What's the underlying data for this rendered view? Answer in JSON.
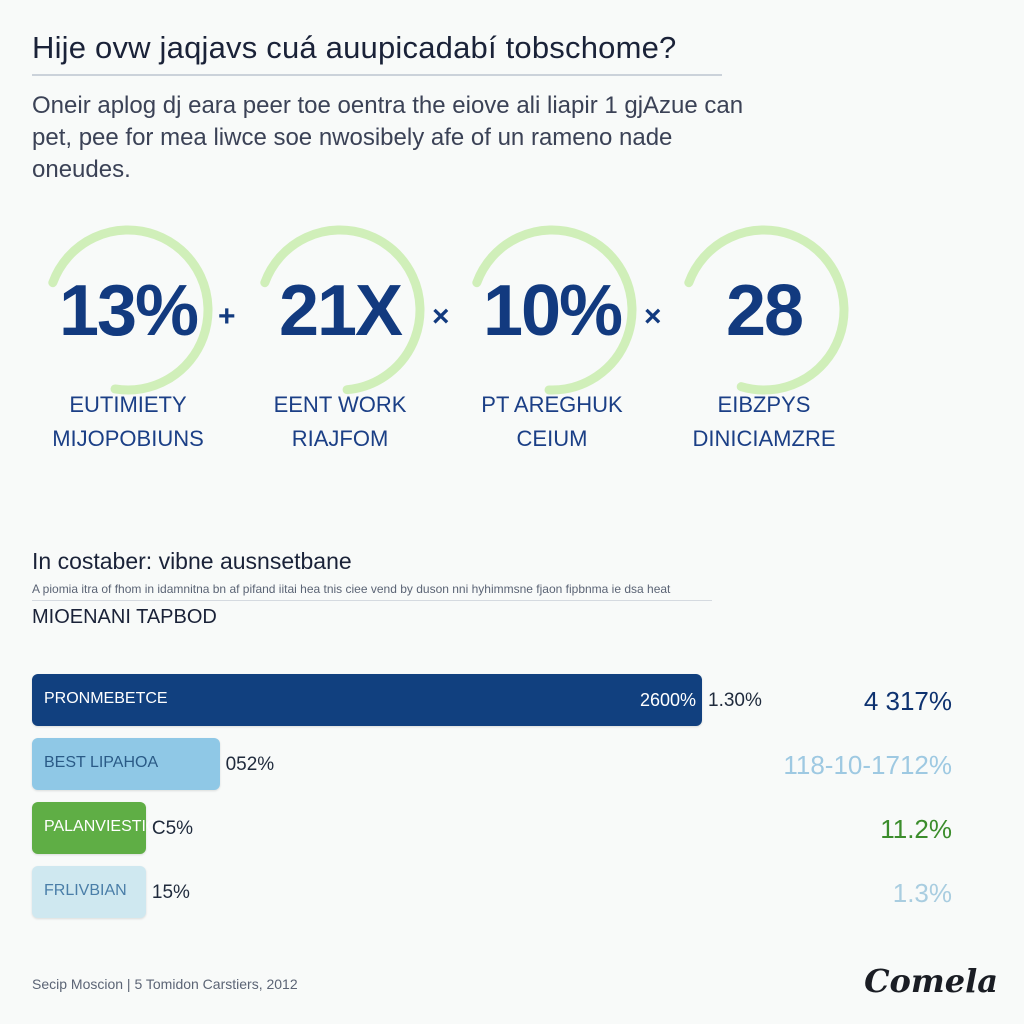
{
  "header": {
    "title": "Hije ovw jaqjavs cuá auupicadabí tobschome?",
    "subtitle": "Oneir aplog dj eara peer toe oentra the eiove ali liapir 1 gjAzue can pet, pee for mea liwce soe nwosibely afe of un rameno nade oneudes."
  },
  "kpis": [
    {
      "value": "13%",
      "label_line1": "EUTIMIETY",
      "label_line2": "MIJOPOBIUNS",
      "ring_color": "#c9ecae",
      "ring_fill": 0.72
    },
    {
      "value": "21X",
      "label_line1": "EENT WORK",
      "label_line2": "RIAJFOM",
      "ring_color": "#c9ecae",
      "ring_fill": 0.68
    },
    {
      "value": "10%",
      "label_line1": "PT AREGHUK",
      "label_line2": "CEIUM",
      "ring_color": "#c9ecae",
      "ring_fill": 0.7
    },
    {
      "value": "28",
      "label_line1": "EIBZPYS",
      "label_line2": "DINICIAMZRE",
      "ring_color": "#c9ecae",
      "ring_fill": 0.74
    }
  ],
  "operators": [
    "+",
    "×",
    "×"
  ],
  "section": {
    "title": "In costaber: vibne ausnsetbane",
    "note": "A piomia itra of fhom in idamnitna bn af pifand iitai hea tnis ciee vend by duson nni hyhimmsne fjaon fipbnma ie dsa heat",
    "subtitle": "MIOENANI TAPBOD"
  },
  "chart_data": {
    "type": "bar",
    "title": "In costaber: vibne ausnsetbane",
    "xlabel": "",
    "ylabel": "",
    "categories": [
      "PRONMEBETCE",
      "BEST LIPAHOA",
      "PALANVIESTIONE",
      "FRLIVBIAN"
    ],
    "series": [
      {
        "values": [
          100,
          28,
          17,
          17
        ]
      }
    ],
    "inner_labels": [
      "2600%",
      "",
      "",
      ""
    ],
    "value_labels": [
      "1.30%",
      "052%",
      "C5%",
      "15%"
    ],
    "right_labels": [
      "4 317%",
      "118-10-1712%",
      "11.2%",
      "1.3%"
    ],
    "colors": [
      "#11407f",
      "#8fc8e6",
      "#5fae45",
      "#cfe8f0"
    ],
    "label_colors": [
      "#ffffff",
      "#2a5a86",
      "#ffffff",
      "#4a7ea8"
    ],
    "right_colors": [
      "#0e3270",
      "#9ec9e2",
      "#3b8d2c",
      "#a9cde0"
    ],
    "xlim": [
      0,
      100
    ]
  },
  "footer": {
    "source": "Secip Moscion | 5 Tomidon Carstiers, 2012",
    "brand": "Comela"
  }
}
